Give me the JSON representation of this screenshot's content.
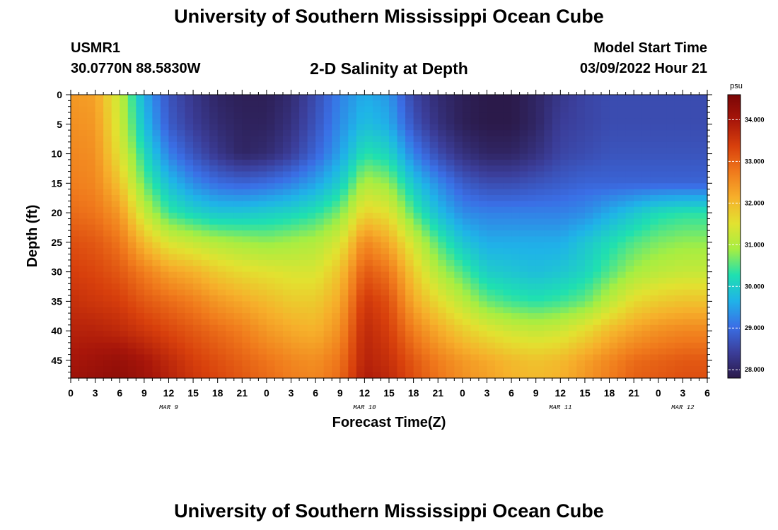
{
  "header": {
    "title": "University of Southern Mississippi Ocean Cube",
    "station_id": "USMR1",
    "station_coords": "30.0770N  88.5830W",
    "subtitle": "2-D Salinity at Depth",
    "model_start_label": "Model Start Time",
    "model_start_value": "03/09/2022 Hour 21"
  },
  "footer": {
    "title": "University of Southern Mississippi Ocean Cube"
  },
  "chart_data": {
    "type": "heatmap",
    "xlabel": "Forecast Time(Z)",
    "ylabel": "Depth (ft)",
    "x_unit": "hours",
    "x_tick_labels": [
      "0",
      "3",
      "6",
      "9",
      "12",
      "15",
      "18",
      "21",
      "0",
      "3",
      "6",
      "9",
      "12",
      "15",
      "18",
      "21",
      "0",
      "3",
      "6",
      "9",
      "12",
      "15",
      "18",
      "21",
      "0",
      "3",
      "6"
    ],
    "x_range_hours": [
      0,
      78
    ],
    "date_labels": [
      {
        "text": "MAR 9",
        "hour": 12
      },
      {
        "text": "MAR 10",
        "hour": 36
      },
      {
        "text": "MAR 11",
        "hour": 60
      },
      {
        "text": "MAR 12",
        "hour": 75
      }
    ],
    "y_ticks": [
      0,
      5,
      10,
      15,
      20,
      25,
      30,
      35,
      40,
      45
    ],
    "ylim": [
      0,
      48
    ],
    "y_inverted": true,
    "colorbar": {
      "unit": "psu",
      "min": 27.8,
      "max": 34.6,
      "tick_values": [
        28,
        29,
        30,
        31,
        32,
        33,
        34
      ],
      "tick_labels": [
        "28.000",
        "29.000",
        "30.000",
        "31.000",
        "32.000",
        "33.000",
        "34.000"
      ],
      "colormap": [
        "#2b1a4a",
        "#3b3e9a",
        "#3a6fe6",
        "#1fb3e8",
        "#1fe0b0",
        "#a6ee42",
        "#e2e230",
        "#f6b02b",
        "#f07a1c",
        "#d8400c",
        "#a8160a",
        "#7a0606"
      ]
    },
    "grid": {
      "hours": [
        0,
        3,
        6,
        9,
        12,
        15,
        18,
        21,
        24,
        27,
        30,
        33,
        36,
        39,
        42,
        45,
        48,
        51,
        54,
        57,
        60,
        63,
        66,
        69,
        72,
        75,
        78
      ],
      "depths": [
        0,
        5,
        10,
        15,
        20,
        25,
        30,
        35,
        40,
        45,
        48
      ],
      "salinity_psu": [
        [
          32.4,
          32.3,
          31.2,
          29.6,
          28.7,
          28.3,
          28.0,
          27.9,
          27.9,
          28.1,
          28.6,
          29.2,
          29.6,
          29.4,
          28.5,
          28.1,
          27.9,
          27.8,
          27.8,
          28.0,
          28.3,
          28.5,
          28.6,
          28.6,
          28.6,
          28.6,
          28.6
        ],
        [
          32.5,
          32.4,
          31.3,
          29.8,
          28.8,
          28.4,
          28.1,
          27.95,
          27.95,
          28.2,
          28.7,
          29.3,
          29.8,
          29.6,
          28.7,
          28.2,
          27.9,
          27.8,
          27.8,
          28.0,
          28.4,
          28.5,
          28.6,
          28.6,
          28.6,
          28.6,
          28.6
        ],
        [
          32.6,
          32.5,
          31.5,
          30.2,
          29.2,
          28.7,
          28.3,
          28.0,
          28.1,
          28.4,
          28.9,
          29.5,
          30.3,
          30.1,
          29.2,
          28.6,
          28.2,
          28.0,
          28.0,
          28.2,
          28.5,
          28.6,
          28.7,
          28.7,
          28.7,
          28.7,
          28.7
        ],
        [
          32.7,
          32.6,
          31.9,
          30.6,
          29.8,
          29.3,
          29.0,
          28.9,
          29.0,
          29.2,
          29.5,
          30.0,
          31.0,
          30.8,
          29.9,
          29.3,
          28.8,
          28.6,
          28.6,
          28.7,
          28.8,
          28.9,
          28.9,
          28.9,
          28.9,
          28.9,
          28.9
        ],
        [
          32.9,
          32.8,
          32.4,
          31.2,
          30.4,
          30.1,
          29.9,
          29.9,
          30.0,
          30.1,
          30.3,
          30.7,
          31.7,
          31.5,
          30.5,
          29.8,
          29.3,
          29.2,
          29.2,
          29.2,
          29.2,
          29.3,
          29.6,
          29.9,
          30.2,
          30.3,
          30.3
        ],
        [
          33.2,
          33.1,
          32.8,
          32.0,
          31.4,
          31.2,
          31.0,
          30.9,
          30.8,
          30.9,
          31.0,
          31.4,
          32.6,
          32.2,
          31.3,
          30.5,
          29.9,
          29.6,
          29.6,
          29.6,
          29.6,
          29.9,
          30.2,
          30.5,
          30.7,
          30.8,
          30.8
        ],
        [
          33.4,
          33.3,
          33.1,
          32.7,
          32.3,
          32.1,
          31.8,
          31.6,
          31.5,
          31.4,
          31.4,
          31.9,
          33.1,
          32.8,
          31.8,
          31.0,
          30.5,
          30.0,
          29.9,
          29.8,
          29.9,
          30.1,
          30.5,
          30.9,
          31.1,
          31.2,
          31.2
        ],
        [
          33.6,
          33.5,
          33.4,
          33.1,
          32.9,
          32.7,
          32.4,
          32.2,
          32.0,
          31.8,
          31.8,
          32.2,
          33.5,
          33.2,
          32.2,
          31.6,
          31.1,
          30.6,
          30.4,
          30.3,
          30.4,
          30.6,
          31.1,
          31.6,
          31.8,
          31.9,
          31.9
        ],
        [
          33.8,
          33.8,
          33.7,
          33.5,
          33.3,
          33.1,
          32.9,
          32.7,
          32.4,
          32.2,
          32.1,
          32.5,
          33.7,
          33.4,
          32.7,
          32.2,
          31.8,
          31.5,
          31.3,
          31.2,
          31.3,
          31.6,
          32.0,
          32.3,
          32.5,
          32.6,
          32.6
        ],
        [
          34.0,
          34.1,
          34.2,
          34.0,
          33.7,
          33.4,
          33.2,
          33.0,
          32.8,
          32.6,
          32.5,
          32.8,
          33.8,
          33.6,
          33.1,
          32.7,
          32.4,
          32.2,
          32.0,
          31.9,
          32.0,
          32.3,
          32.6,
          32.9,
          33.0,
          33.1,
          33.1
        ],
        [
          34.1,
          34.2,
          34.3,
          34.1,
          33.8,
          33.5,
          33.3,
          33.1,
          32.9,
          32.7,
          32.6,
          32.9,
          33.9,
          33.7,
          33.2,
          32.8,
          32.5,
          32.3,
          32.1,
          32.0,
          32.1,
          32.4,
          32.7,
          33.0,
          33.1,
          33.2,
          33.2
        ]
      ]
    }
  }
}
